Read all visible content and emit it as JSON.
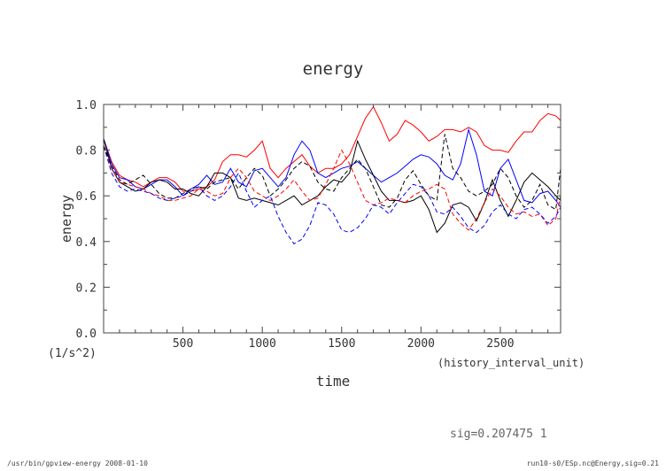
{
  "chart_data": {
    "type": "line",
    "title": "energy",
    "xlabel": "time",
    "x_units": "(history_interval_unit)",
    "ylabel": "energy",
    "y_units": "(1/s^2)",
    "xlim": [
      0,
      2880
    ],
    "ylim": [
      0.0,
      1.0
    ],
    "x_ticks": [
      500,
      1000,
      1500,
      2000,
      2500
    ],
    "x_tick_labels": [
      "500",
      "1000",
      "1500",
      "2000",
      "2500"
    ],
    "y_ticks": [
      0.0,
      0.2,
      0.4,
      0.6,
      0.8,
      1.0
    ],
    "y_tick_labels": [
      "0.0",
      "0.2",
      "0.4",
      "0.6",
      "0.8",
      "1.0"
    ],
    "x": [
      0,
      50,
      100,
      150,
      200,
      250,
      300,
      350,
      400,
      450,
      500,
      550,
      600,
      650,
      700,
      750,
      800,
      850,
      900,
      950,
      1000,
      1050,
      1100,
      1150,
      1200,
      1250,
      1300,
      1350,
      1400,
      1450,
      1500,
      1550,
      1600,
      1650,
      1700,
      1750,
      1800,
      1850,
      1900,
      1950,
      2000,
      2050,
      2100,
      2150,
      2200,
      2250,
      2300,
      2350,
      2400,
      2450,
      2500,
      2550,
      2600,
      2650,
      2700,
      2750,
      2800,
      2850,
      2880
    ],
    "series": [
      {
        "name": "red-solid",
        "color": "#ff0000",
        "dash": "solid",
        "values": [
          0.85,
          0.75,
          0.69,
          0.67,
          0.66,
          0.64,
          0.66,
          0.68,
          0.68,
          0.66,
          0.62,
          0.62,
          0.63,
          0.64,
          0.67,
          0.75,
          0.78,
          0.78,
          0.77,
          0.8,
          0.84,
          0.72,
          0.68,
          0.72,
          0.75,
          0.78,
          0.73,
          0.7,
          0.72,
          0.72,
          0.74,
          0.78,
          0.86,
          0.94,
          0.99,
          0.92,
          0.84,
          0.87,
          0.93,
          0.91,
          0.88,
          0.84,
          0.86,
          0.89,
          0.89,
          0.88,
          0.9,
          0.88,
          0.82,
          0.8,
          0.8,
          0.79,
          0.84,
          0.88,
          0.88,
          0.93,
          0.96,
          0.95,
          0.93
        ]
      },
      {
        "name": "blue-solid",
        "color": "#0000ff",
        "dash": "solid",
        "values": [
          0.85,
          0.74,
          0.68,
          0.67,
          0.64,
          0.63,
          0.65,
          0.67,
          0.67,
          0.64,
          0.6,
          0.63,
          0.65,
          0.69,
          0.65,
          0.66,
          0.72,
          0.66,
          0.64,
          0.71,
          0.72,
          0.68,
          0.64,
          0.68,
          0.78,
          0.84,
          0.8,
          0.7,
          0.68,
          0.7,
          0.72,
          0.73,
          0.75,
          0.72,
          0.69,
          0.66,
          0.68,
          0.7,
          0.73,
          0.76,
          0.78,
          0.77,
          0.74,
          0.69,
          0.67,
          0.74,
          0.89,
          0.78,
          0.62,
          0.6,
          0.72,
          0.76,
          0.67,
          0.58,
          0.57,
          0.61,
          0.62,
          0.58,
          0.55
        ]
      },
      {
        "name": "black-solid",
        "color": "#000000",
        "dash": "solid",
        "values": [
          0.85,
          0.72,
          0.66,
          0.64,
          0.62,
          0.63,
          0.66,
          0.67,
          0.66,
          0.63,
          0.63,
          0.61,
          0.6,
          0.64,
          0.7,
          0.7,
          0.68,
          0.59,
          0.58,
          0.59,
          0.58,
          0.57,
          0.56,
          0.58,
          0.6,
          0.56,
          0.58,
          0.6,
          0.64,
          0.67,
          0.66,
          0.7,
          0.84,
          0.76,
          0.69,
          0.62,
          0.58,
          0.58,
          0.57,
          0.58,
          0.6,
          0.54,
          0.44,
          0.48,
          0.56,
          0.57,
          0.55,
          0.49,
          0.57,
          0.67,
          0.58,
          0.51,
          0.58,
          0.66,
          0.7,
          0.67,
          0.64,
          0.6,
          0.58
        ]
      },
      {
        "name": "red-dashed",
        "color": "#ff0000",
        "dash": "dashed",
        "values": [
          0.82,
          0.72,
          0.66,
          0.65,
          0.64,
          0.63,
          0.61,
          0.6,
          0.58,
          0.58,
          0.59,
          0.6,
          0.63,
          0.62,
          0.6,
          0.61,
          0.68,
          0.72,
          0.68,
          0.62,
          0.6,
          0.58,
          0.6,
          0.63,
          0.67,
          0.62,
          0.58,
          0.59,
          0.65,
          0.72,
          0.8,
          0.74,
          0.66,
          0.58,
          0.56,
          0.57,
          0.59,
          0.58,
          0.57,
          0.6,
          0.62,
          0.63,
          0.65,
          0.63,
          0.52,
          0.48,
          0.45,
          0.5,
          0.57,
          0.63,
          0.6,
          0.55,
          0.52,
          0.53,
          0.51,
          0.52,
          0.47,
          0.5,
          0.6
        ]
      },
      {
        "name": "blue-dashed",
        "color": "#0000ff",
        "dash": "dashed",
        "values": [
          0.82,
          0.7,
          0.64,
          0.62,
          0.63,
          0.62,
          0.61,
          0.59,
          0.58,
          0.59,
          0.6,
          0.62,
          0.64,
          0.6,
          0.58,
          0.6,
          0.64,
          0.7,
          0.62,
          0.55,
          0.58,
          0.6,
          0.51,
          0.44,
          0.39,
          0.41,
          0.47,
          0.57,
          0.56,
          0.52,
          0.45,
          0.44,
          0.46,
          0.5,
          0.56,
          0.55,
          0.52,
          0.57,
          0.61,
          0.65,
          0.64,
          0.6,
          0.53,
          0.52,
          0.55,
          0.51,
          0.46,
          0.44,
          0.47,
          0.53,
          0.56,
          0.52,
          0.5,
          0.54,
          0.55,
          0.52,
          0.48,
          0.51,
          0.55
        ]
      },
      {
        "name": "black-dashed",
        "color": "#000000",
        "dash": "dashed",
        "values": [
          0.82,
          0.73,
          0.67,
          0.65,
          0.67,
          0.69,
          0.65,
          0.61,
          0.59,
          0.59,
          0.61,
          0.63,
          0.64,
          0.63,
          0.66,
          0.67,
          0.68,
          0.63,
          0.68,
          0.72,
          0.69,
          0.6,
          0.63,
          0.67,
          0.72,
          0.75,
          0.73,
          0.66,
          0.63,
          0.62,
          0.68,
          0.72,
          0.76,
          0.72,
          0.64,
          0.56,
          0.55,
          0.59,
          0.67,
          0.71,
          0.65,
          0.6,
          0.58,
          0.87,
          0.72,
          0.68,
          0.62,
          0.6,
          0.62,
          0.65,
          0.72,
          0.68,
          0.6,
          0.55,
          0.58,
          0.65,
          0.56,
          0.54,
          0.72
        ]
      }
    ]
  },
  "annotation": "sig=0.207475   1",
  "footer": {
    "left": "/usr/bin/gpview-energy  2008-01-10",
    "right": "run10-s0/ESp.nc@Energy,sig=0.21"
  }
}
